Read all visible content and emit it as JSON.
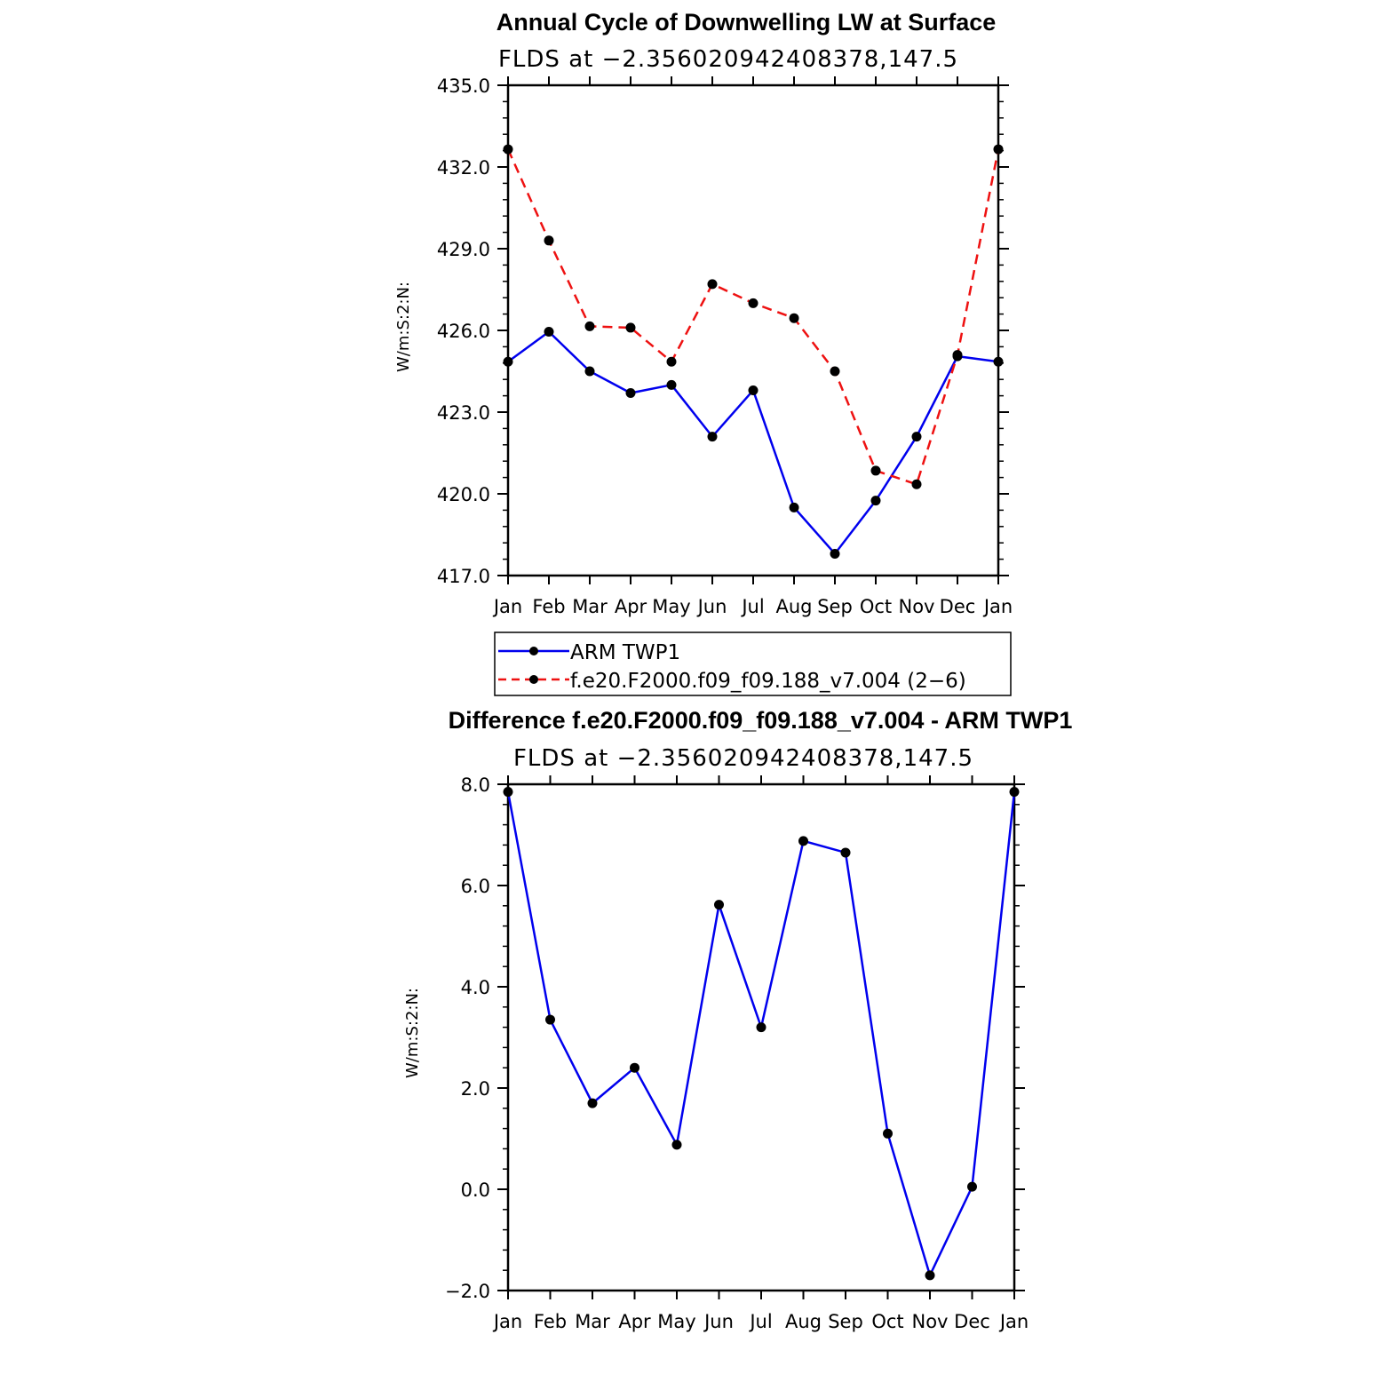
{
  "chart_data": [
    {
      "type": "line",
      "title": "Annual Cycle of Downwelling LW at Surface",
      "subtitle": "FLDS at −2.356020942408378,147.5",
      "xlabel": "",
      "ylabel": "W/m:S:2:N:",
      "categories": [
        "Jan",
        "Feb",
        "Mar",
        "Apr",
        "May",
        "Jun",
        "Jul",
        "Aug",
        "Sep",
        "Oct",
        "Nov",
        "Dec",
        "Jan"
      ],
      "ylim": [
        417.0,
        435.0
      ],
      "yticks": [
        "417.0",
        "420.0",
        "423.0",
        "426.0",
        "429.0",
        "432.0",
        "435.0"
      ],
      "series": [
        {
          "name": "ARM TWP1",
          "color": "#0000ee",
          "dash": "solid",
          "values": [
            424.85,
            425.95,
            424.5,
            423.7,
            424.0,
            422.1,
            423.8,
            419.5,
            417.8,
            419.75,
            422.1,
            425.05,
            424.85
          ]
        },
        {
          "name": "f.e20.F2000.f09_f09.188_v7.004 (2−6)",
          "color": "#ee1111",
          "dash": "dashed",
          "values": [
            432.65,
            429.3,
            426.15,
            426.1,
            424.85,
            427.7,
            427.0,
            426.45,
            424.5,
            420.85,
            420.35,
            425.1,
            432.65
          ]
        }
      ],
      "legend_position": "below"
    },
    {
      "type": "line",
      "title": "Difference f.e20.F2000.f09_f09.188_v7.004 - ARM TWP1",
      "subtitle": "FLDS at −2.356020942408378,147.5",
      "xlabel": "",
      "ylabel": "W/m:S:2:N:",
      "categories": [
        "Jan",
        "Feb",
        "Mar",
        "Apr",
        "May",
        "Jun",
        "Jul",
        "Aug",
        "Sep",
        "Oct",
        "Nov",
        "Dec",
        "Jan"
      ],
      "ylim": [
        -2.0,
        8.0
      ],
      "yticks": [
        "−2.0",
        "0.0",
        "2.0",
        "4.0",
        "6.0",
        "8.0"
      ],
      "series": [
        {
          "name": "Difference",
          "color": "#0000ee",
          "dash": "solid",
          "values": [
            7.85,
            3.35,
            1.7,
            2.4,
            0.88,
            5.62,
            3.2,
            6.88,
            6.65,
            1.1,
            -1.7,
            0.05,
            7.85
          ]
        }
      ]
    }
  ]
}
